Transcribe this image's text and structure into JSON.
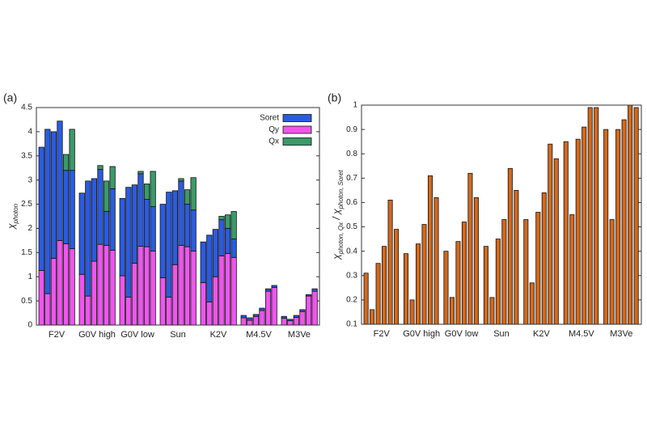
{
  "chart_data": [
    {
      "type": "stacked_bar",
      "panel_label": "(a)",
      "ylabel": [
        {
          "text": "χ"
        },
        {
          "text": "photon",
          "sub": true
        }
      ],
      "categories": [
        "F2V",
        "G0V high",
        "G0V low",
        "Sun",
        "K2V",
        "M4.5V",
        "M3Ve"
      ],
      "ylim": [
        0,
        4.5
      ],
      "yticks": [
        0,
        0.5,
        1,
        1.5,
        2,
        2.5,
        3,
        3.5,
        4,
        4.5
      ],
      "legend": "upper right",
      "stack_order": [
        "Qy",
        "Soret",
        "Qx"
      ],
      "series": [
        {
          "name": "Soret",
          "color": "#2b5be0",
          "values": [
            [
              2.55,
              3.4,
              2.62,
              2.47,
              1.52,
              1.62
            ],
            [
              1.68,
              2.38,
              1.71,
              1.55,
              0.7,
              1.27
            ],
            [
              1.6,
              2.27,
              1.62,
              1.5,
              0.98,
              0.92
            ],
            [
              1.52,
              2.17,
              1.53,
              1.33,
              0.88,
              0.85
            ],
            [
              0.84,
              1.38,
              0.98,
              0.75,
              0.52,
              0.38
            ],
            [
              0.05,
              0.05,
              0.04,
              0.05,
              0.05,
              0.04
            ],
            [
              0.04,
              0.03,
              0.04,
              0.04,
              0.03,
              0.05
            ]
          ]
        },
        {
          "name": "Qy",
          "color": "#ee55ee",
          "values": [
            [
              1.13,
              0.65,
              1.38,
              1.75,
              1.68,
              1.58
            ],
            [
              1.05,
              0.6,
              1.32,
              1.67,
              1.65,
              1.55
            ],
            [
              1.02,
              0.58,
              1.28,
              1.63,
              1.62,
              1.53
            ],
            [
              0.98,
              0.58,
              1.25,
              1.65,
              1.62,
              1.53
            ],
            [
              0.88,
              0.48,
              1.0,
              1.43,
              1.48,
              1.4
            ],
            [
              0.15,
              0.1,
              0.18,
              0.3,
              0.7,
              0.78
            ],
            [
              0.14,
              0.09,
              0.16,
              0.28,
              0.6,
              0.7
            ]
          ]
        },
        {
          "name": "Qx",
          "color": "#3a9a6a",
          "values": [
            [
              0,
              0,
              0,
              0,
              0.33,
              0.85
            ],
            [
              0,
              0,
              0,
              0.08,
              0.63,
              0.46
            ],
            [
              0,
              0,
              0,
              0.05,
              0.32,
              0.73
            ],
            [
              0,
              0,
              0,
              0.05,
              0.3,
              0.67
            ],
            [
              0,
              0,
              0,
              0.07,
              0.28,
              0.57
            ],
            [
              0,
              0,
              0,
              0,
              0,
              0
            ],
            [
              0,
              0,
              0,
              0,
              0,
              0
            ]
          ]
        }
      ]
    },
    {
      "type": "bar",
      "panel_label": "(b)",
      "ylabel": [
        {
          "text": "χ"
        },
        {
          "text": "photon, Qx",
          "sub": true
        },
        {
          "text": " / χ"
        },
        {
          "text": "photon, Soret",
          "sub": true
        }
      ],
      "categories": [
        "F2V",
        "G0V high",
        "G0V low",
        "Sun",
        "K2V",
        "M4.5V",
        "M3Ve"
      ],
      "ylim": [
        0.1,
        1
      ],
      "yticks": [
        0.1,
        0.2,
        0.3,
        0.4,
        0.5,
        0.6,
        0.7,
        0.8,
        0.9,
        1
      ],
      "color": "#d2691e",
      "values": [
        [
          0.31,
          0.16,
          0.35,
          0.42,
          0.61,
          0.49
        ],
        [
          0.39,
          0.2,
          0.43,
          0.51,
          0.71,
          0.62
        ],
        [
          0.4,
          0.21,
          0.44,
          0.52,
          0.72,
          0.62
        ],
        [
          0.42,
          0.21,
          0.45,
          0.53,
          0.74,
          0.65
        ],
        [
          0.53,
          0.27,
          0.56,
          0.64,
          0.84,
          0.78
        ],
        [
          0.85,
          0.55,
          0.86,
          0.91,
          0.99,
          0.99
        ],
        [
          0.9,
          0.53,
          0.9,
          0.94,
          1.0,
          0.99
        ]
      ]
    }
  ]
}
